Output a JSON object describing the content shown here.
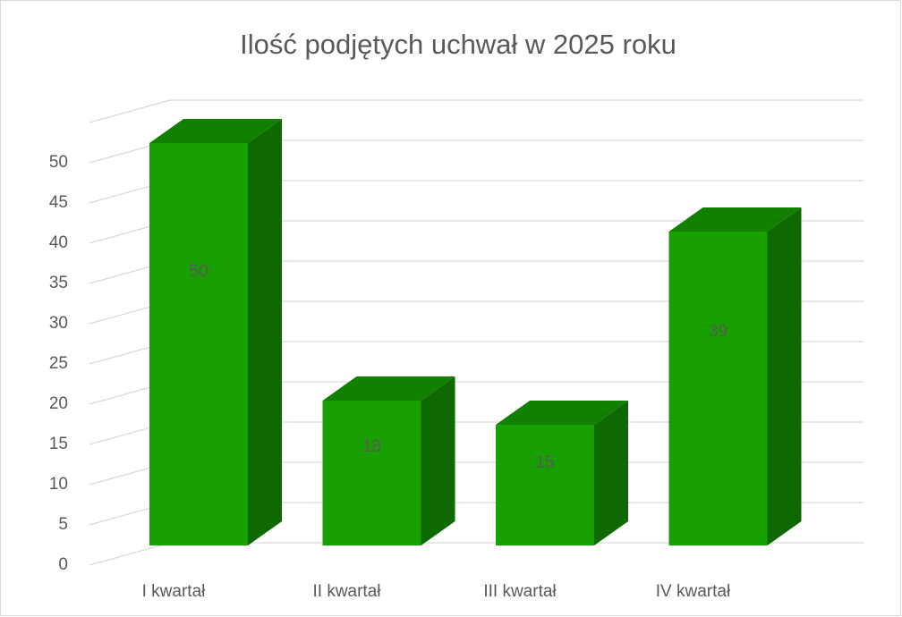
{
  "chart_data": {
    "type": "bar3d",
    "title": "Ilość podjętych uchwał w 2025 roku",
    "categories": [
      "I kwartał",
      "II kwartał",
      "III kwartał",
      "IV kwartał"
    ],
    "values": [
      50,
      18,
      15,
      39
    ],
    "color": "#17a000",
    "top_color": "#118000",
    "side_color": "#0e6a00",
    "ylim": [
      0,
      55
    ],
    "yticks": [
      0,
      5,
      10,
      15,
      20,
      25,
      30,
      35,
      40,
      45,
      50
    ],
    "grid": true
  }
}
